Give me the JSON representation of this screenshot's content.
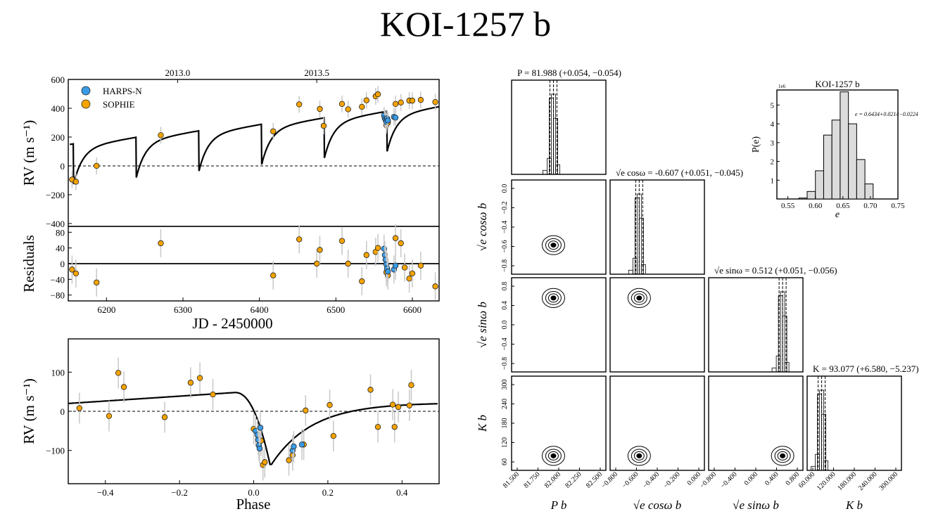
{
  "title": "KOI-1257 b",
  "colors": {
    "harps": "#3a9ce6",
    "sophie": "#f5a300",
    "model": "#000000",
    "errbar": "#c8c8c8",
    "hist_fill": "#dcdcdc"
  },
  "chart_data": [
    {
      "id": "rv_time",
      "type": "scatter",
      "xlim": [
        6150,
        6635
      ],
      "ylim": [
        -420,
        600
      ],
      "ylabel": "RV (m s⁻¹)",
      "yticks": [
        -400,
        -200,
        0,
        200,
        400,
        600
      ],
      "yticklabels": [
        "−400",
        "−200",
        "0",
        "200",
        "400",
        "600"
      ],
      "top_axis_ticks": [
        6293,
        6475
      ],
      "top_axis_labels": [
        "2013.0",
        "2013.5"
      ],
      "legend": {
        "position": "top-left",
        "entries": [
          "HARPS-N",
          "SOPHIE"
        ]
      },
      "series": [
        {
          "name": "SOPHIE",
          "points": [
            [
              6155,
              -95
            ],
            [
              6160,
              -110
            ],
            [
              6187,
              0
            ],
            [
              6271,
              213
            ],
            [
              6418,
              240
            ],
            [
              6452,
              427
            ],
            [
              6479,
              395
            ],
            [
              6484,
              278
            ],
            [
              6508,
              430
            ],
            [
              6516,
              393
            ],
            [
              6534,
              410
            ],
            [
              6540,
              455
            ],
            [
              6552,
              483
            ],
            [
              6555,
              497
            ],
            [
              6566,
              282
            ],
            [
              6568,
              300
            ],
            [
              6578,
              430
            ],
            [
              6585,
              440
            ],
            [
              6596,
              453
            ],
            [
              6600,
              453
            ],
            [
              6611,
              458
            ],
            [
              6630,
              443
            ]
          ]
        },
        {
          "name": "HARPS-N",
          "points": [
            [
              6563,
              350
            ],
            [
              6564,
              330
            ],
            [
              6565,
              320
            ],
            [
              6566,
              305
            ],
            [
              6567,
              330
            ],
            [
              6568,
              315
            ],
            [
              6576,
              340
            ],
            [
              6578,
              335
            ]
          ]
        }
      ]
    },
    {
      "id": "residuals",
      "type": "scatter",
      "xlim": [
        6150,
        6635
      ],
      "ylim": [
        -95,
        95
      ],
      "ylabel": "Residuals",
      "xlabel": "JD - 2450000",
      "xticks": [
        6200,
        6300,
        6400,
        6500,
        6600
      ],
      "yticks": [
        -80,
        -40,
        0,
        40,
        80
      ],
      "yticklabels": [
        "−80",
        "−40",
        "0",
        "40",
        "80"
      ],
      "series": [
        {
          "name": "SOPHIE",
          "points": [
            [
              6155,
              -15
            ],
            [
              6160,
              -25
            ],
            [
              6187,
              -48
            ],
            [
              6271,
              52
            ],
            [
              6418,
              -30
            ],
            [
              6452,
              62
            ],
            [
              6475,
              0
            ],
            [
              6479,
              35
            ],
            [
              6508,
              58
            ],
            [
              6516,
              0
            ],
            [
              6534,
              -45
            ],
            [
              6540,
              22
            ],
            [
              6552,
              30
            ],
            [
              6555,
              40
            ],
            [
              6566,
              -22
            ],
            [
              6568,
              -30
            ],
            [
              6578,
              65
            ],
            [
              6585,
              52
            ],
            [
              6590,
              -10
            ],
            [
              6596,
              -38
            ],
            [
              6600,
              -25
            ],
            [
              6611,
              -5
            ],
            [
              6630,
              -58
            ]
          ]
        },
        {
          "name": "HARPS-N",
          "points": [
            [
              6563,
              38
            ],
            [
              6564,
              22
            ],
            [
              6565,
              10
            ],
            [
              6566,
              -2
            ],
            [
              6567,
              -12
            ],
            [
              6568,
              -20
            ],
            [
              6576,
              -15
            ],
            [
              6578,
              -5
            ]
          ]
        }
      ]
    },
    {
      "id": "rv_phase",
      "type": "scatter",
      "xlim": [
        -0.5,
        0.5
      ],
      "ylim": [
        -185,
        185
      ],
      "xlabel": "Phase",
      "ylabel": "RV (m s⁻¹)",
      "xticks": [
        -0.4,
        -0.2,
        0.0,
        0.2,
        0.4
      ],
      "xticklabels": [
        "−0.4",
        "−0.2",
        "0.0",
        "0.2",
        "0.4"
      ],
      "yticks": [
        -100,
        0,
        100
      ],
      "yticklabels": [
        "−100",
        "0",
        "100"
      ],
      "series": [
        {
          "name": "SOPHIE",
          "points": [
            [
              -0.47,
              8
            ],
            [
              -0.39,
              -12
            ],
            [
              -0.365,
              98
            ],
            [
              -0.35,
              62
            ],
            [
              -0.24,
              -15
            ],
            [
              -0.17,
              73
            ],
            [
              -0.145,
              85
            ],
            [
              -0.11,
              43
            ],
            [
              0.0,
              -45
            ],
            [
              0.02,
              -75
            ],
            [
              0.025,
              -137
            ],
            [
              0.03,
              -130
            ],
            [
              0.095,
              -125
            ],
            [
              0.105,
              -112
            ],
            [
              0.135,
              -85
            ],
            [
              0.14,
              2
            ],
            [
              0.205,
              16
            ],
            [
              0.215,
              -63
            ],
            [
              0.315,
              55
            ],
            [
              0.335,
              -40
            ],
            [
              0.375,
              17
            ],
            [
              0.38,
              -40
            ],
            [
              0.39,
              11
            ],
            [
              0.42,
              15
            ],
            [
              0.425,
              67
            ]
          ]
        },
        {
          "name": "HARPS-N",
          "points": [
            [
              0.005,
              -50
            ],
            [
              0.01,
              -60
            ],
            [
              0.012,
              -73
            ],
            [
              0.014,
              -87
            ],
            [
              0.016,
              -95
            ],
            [
              0.018,
              -42
            ],
            [
              0.105,
              -100
            ],
            [
              0.108,
              -90
            ],
            [
              0.13,
              -85
            ]
          ]
        }
      ]
    },
    {
      "id": "e_histogram",
      "type": "bar",
      "title": "KOI-1257 b",
      "xlabel": "e",
      "ylabel": "P(e)",
      "scale_label": "1e6",
      "annotation": "e = 0.6434+0.0214−0.0224",
      "xlim": [
        0.53,
        0.75
      ],
      "ylim": [
        0,
        5.8
      ],
      "xticks": [
        0.55,
        0.6,
        0.65,
        0.7,
        0.75
      ],
      "xticklabels": [
        "0.55",
        "0.60",
        "0.65",
        "0.70",
        "0.75"
      ],
      "yticks": [
        1,
        2,
        3,
        4,
        5
      ],
      "bin_edges": [
        0.57,
        0.585,
        0.6,
        0.615,
        0.63,
        0.645,
        0.66,
        0.675,
        0.69,
        0.705
      ],
      "values": [
        0.05,
        0.4,
        1.5,
        3.4,
        4.2,
        5.7,
        4.0,
        2.1,
        0.8
      ]
    },
    {
      "id": "corner",
      "type": "scatter",
      "parameters": [
        {
          "name": "P_b",
          "label": "P",
          "sub": "b",
          "range": [
            81.5,
            82.6
          ],
          "median": 81.988,
          "plus": "+0.054",
          "minus": "−0.054",
          "ticks": [
            "81.500",
            "81.750",
            "82.000",
            "82.250",
            "82.500"
          ]
        },
        {
          "name": "sqrt_e_cos_w",
          "label": "√e cosω",
          "sub": "b",
          "range": [
            -0.9,
            0.05
          ],
          "median": -0.607,
          "plus": "+0.051",
          "minus": "−0.045",
          "ticks": [
            "−0.800",
            "−0.600",
            "−0.400",
            "−0.200",
            "0.000"
          ],
          "yticks": [
            "0.0",
            "−0.2",
            "−0.4",
            "−0.6",
            "−0.8"
          ]
        },
        {
          "name": "sqrt_e_sin_w",
          "label": "√e sinω",
          "sub": "b",
          "range": [
            -0.9,
            0.9
          ],
          "median": 0.512,
          "plus": "+0.051",
          "minus": "−0.056",
          "ticks": [
            "−0.800",
            "−0.400",
            "0.000",
            "0.400",
            "0.800"
          ],
          "yticks": [
            "0.8",
            "0.4",
            "0.0",
            "−0.4",
            "−0.8"
          ]
        },
        {
          "name": "K_b",
          "label": "K",
          "sub": "b",
          "range": [
            50,
            330
          ],
          "median": 93.077,
          "plus": "+6.580",
          "minus": "−5.237",
          "ticks": [
            "60.000",
            "120.000",
            "180.000",
            "240.000",
            "300.000"
          ],
          "yticks": [
            "300",
            "240",
            "180",
            "120",
            "60"
          ]
        }
      ]
    }
  ]
}
